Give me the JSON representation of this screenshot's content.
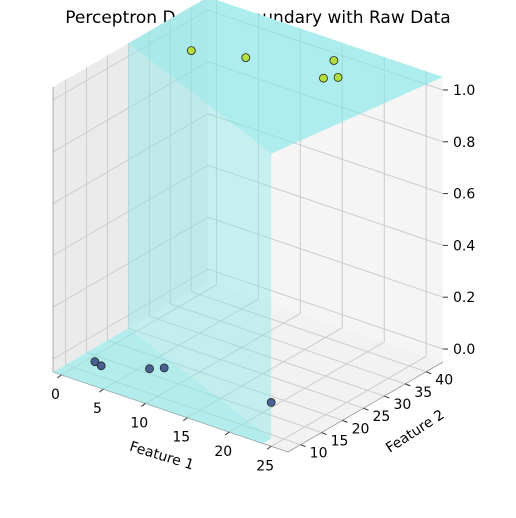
{
  "chart_data": {
    "type": "scatter",
    "title": "Perceptron Decision Boundary with Raw Data",
    "xlabel": "Feature 1",
    "ylabel": "Feature 2",
    "zlabel": "",
    "xlim": [
      -1,
      27
    ],
    "ylim": [
      7,
      44
    ],
    "zlim": [
      -0.05,
      1.05
    ],
    "xticks": [
      "0",
      "5",
      "10",
      "15",
      "20",
      "25"
    ],
    "yticks": [
      "10",
      "15",
      "20",
      "25",
      "30",
      "35",
      "40"
    ],
    "zticks": [
      "0.0",
      "0.2",
      "0.4",
      "0.6",
      "0.8",
      "1.0"
    ],
    "grid": true,
    "points": [
      {
        "x": 2.5,
        "y": 10,
        "z": 0,
        "class": 0
      },
      {
        "x": 3.5,
        "y": 9.5,
        "z": 0,
        "class": 0
      },
      {
        "x": 7.5,
        "y": 13,
        "z": 0,
        "class": 0
      },
      {
        "x": 8.5,
        "y": 14.5,
        "z": 0,
        "class": 0
      },
      {
        "x": 21,
        "y": 15,
        "z": 0,
        "class": 0
      },
      {
        "x": 3,
        "y": 32,
        "z": 1,
        "class": 1
      },
      {
        "x": 8,
        "y": 35,
        "z": 1,
        "class": 1
      },
      {
        "x": 15,
        "y": 42,
        "z": 1,
        "class": 1
      },
      {
        "x": 16.5,
        "y": 36.5,
        "z": 1,
        "class": 1
      },
      {
        "x": 17.5,
        "y": 38,
        "z": 1,
        "class": 1
      }
    ],
    "colors": {
      "class0": "#3b528b",
      "class1": "#b5de2b",
      "surface": "#7fe8e8",
      "pane": "#f2f2f2",
      "grid": "#cccccc"
    }
  }
}
